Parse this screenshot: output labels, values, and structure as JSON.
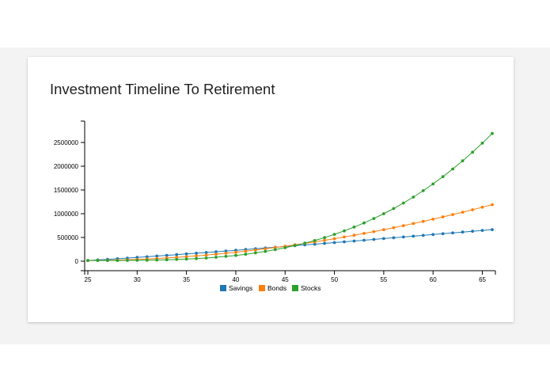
{
  "page": {
    "title": "Investment Timeline To Retirement"
  },
  "colors": {
    "savings": "#1f77b4",
    "bonds": "#ff7f0e",
    "stocks": "#2ca02c",
    "band": "#f3f3f3"
  },
  "chart_data": {
    "type": "line",
    "title": "Investment Timeline To Retirement",
    "xlabel": "",
    "ylabel": "",
    "x_start": 25,
    "x_end": 66,
    "xlim": [
      25,
      66
    ],
    "ylim": [
      -200000,
      2950000
    ],
    "x_ticks": [
      25,
      30,
      35,
      40,
      45,
      50,
      55,
      60,
      65
    ],
    "y_ticks": [
      0,
      500000,
      1000000,
      1500000,
      2000000,
      2500000
    ],
    "grid": false,
    "legend_position": "bottom-center",
    "series": [
      {
        "name": "Savings",
        "color": "#1f77b4",
        "start": 15000,
        "end": 665000,
        "curvature": 1.1
      },
      {
        "name": "Bonds",
        "color": "#ff7f0e",
        "start": 15000,
        "end": 1190000,
        "curvature": 1.9
      },
      {
        "name": "Stocks",
        "color": "#2ca02c",
        "start": 15000,
        "end": 2690000,
        "curvature": 3.2
      }
    ]
  }
}
